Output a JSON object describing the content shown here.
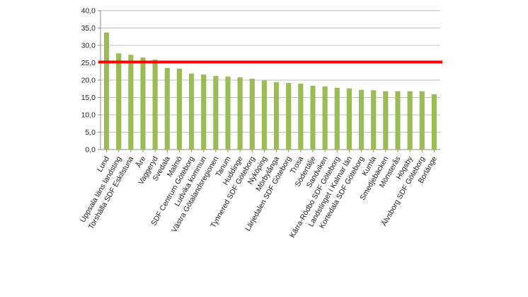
{
  "chart_data": {
    "type": "bar",
    "title": "",
    "xlabel": "",
    "ylabel": "",
    "ylim": [
      0,
      40
    ],
    "yticks": [
      "0,0",
      "5,0",
      "10,0",
      "15,0",
      "20,0",
      "25,0",
      "30,0",
      "35,0",
      "40,0"
    ],
    "grid": true,
    "legend": "none",
    "bar_color": "#9bbb59",
    "reference_line": {
      "value": 25.2,
      "color": "#ff0000"
    },
    "categories": [
      "Lund",
      "Uppsala läns landsting",
      "Torshälla SDF Eskilstuna",
      "Åre",
      "Vaggeryd",
      "Svedala",
      "Malmö",
      "SDF Centrum Göteborg",
      "Ludvika kommun",
      "Västra Götalandsregionen",
      "Tanum",
      "Huddinge",
      "Tynnered SDF Göteborg",
      "Nyköping",
      "Mörbylånga",
      "Lärjedalen SDF Göteborg",
      "Trosa",
      "Södertälje",
      "Sandviken",
      "Kärra-Rödbo SDF Göteborg",
      "Landstinget i Kalmar län",
      "Kortedala SDF Göteborg",
      "Kumla",
      "Smedjebacken",
      "Mönsterås",
      "Högsby",
      "Älvsborg SDF Göteborg",
      "Borlänge"
    ],
    "values": [
      33.7,
      27.7,
      27.3,
      26.5,
      25.9,
      23.5,
      23.3,
      21.9,
      21.6,
      21.2,
      21.0,
      20.8,
      20.4,
      19.9,
      19.4,
      19.2,
      19.0,
      18.4,
      18.2,
      17.8,
      17.6,
      17.2,
      17.1,
      16.8,
      16.8,
      16.8,
      16.8,
      15.9
    ]
  }
}
